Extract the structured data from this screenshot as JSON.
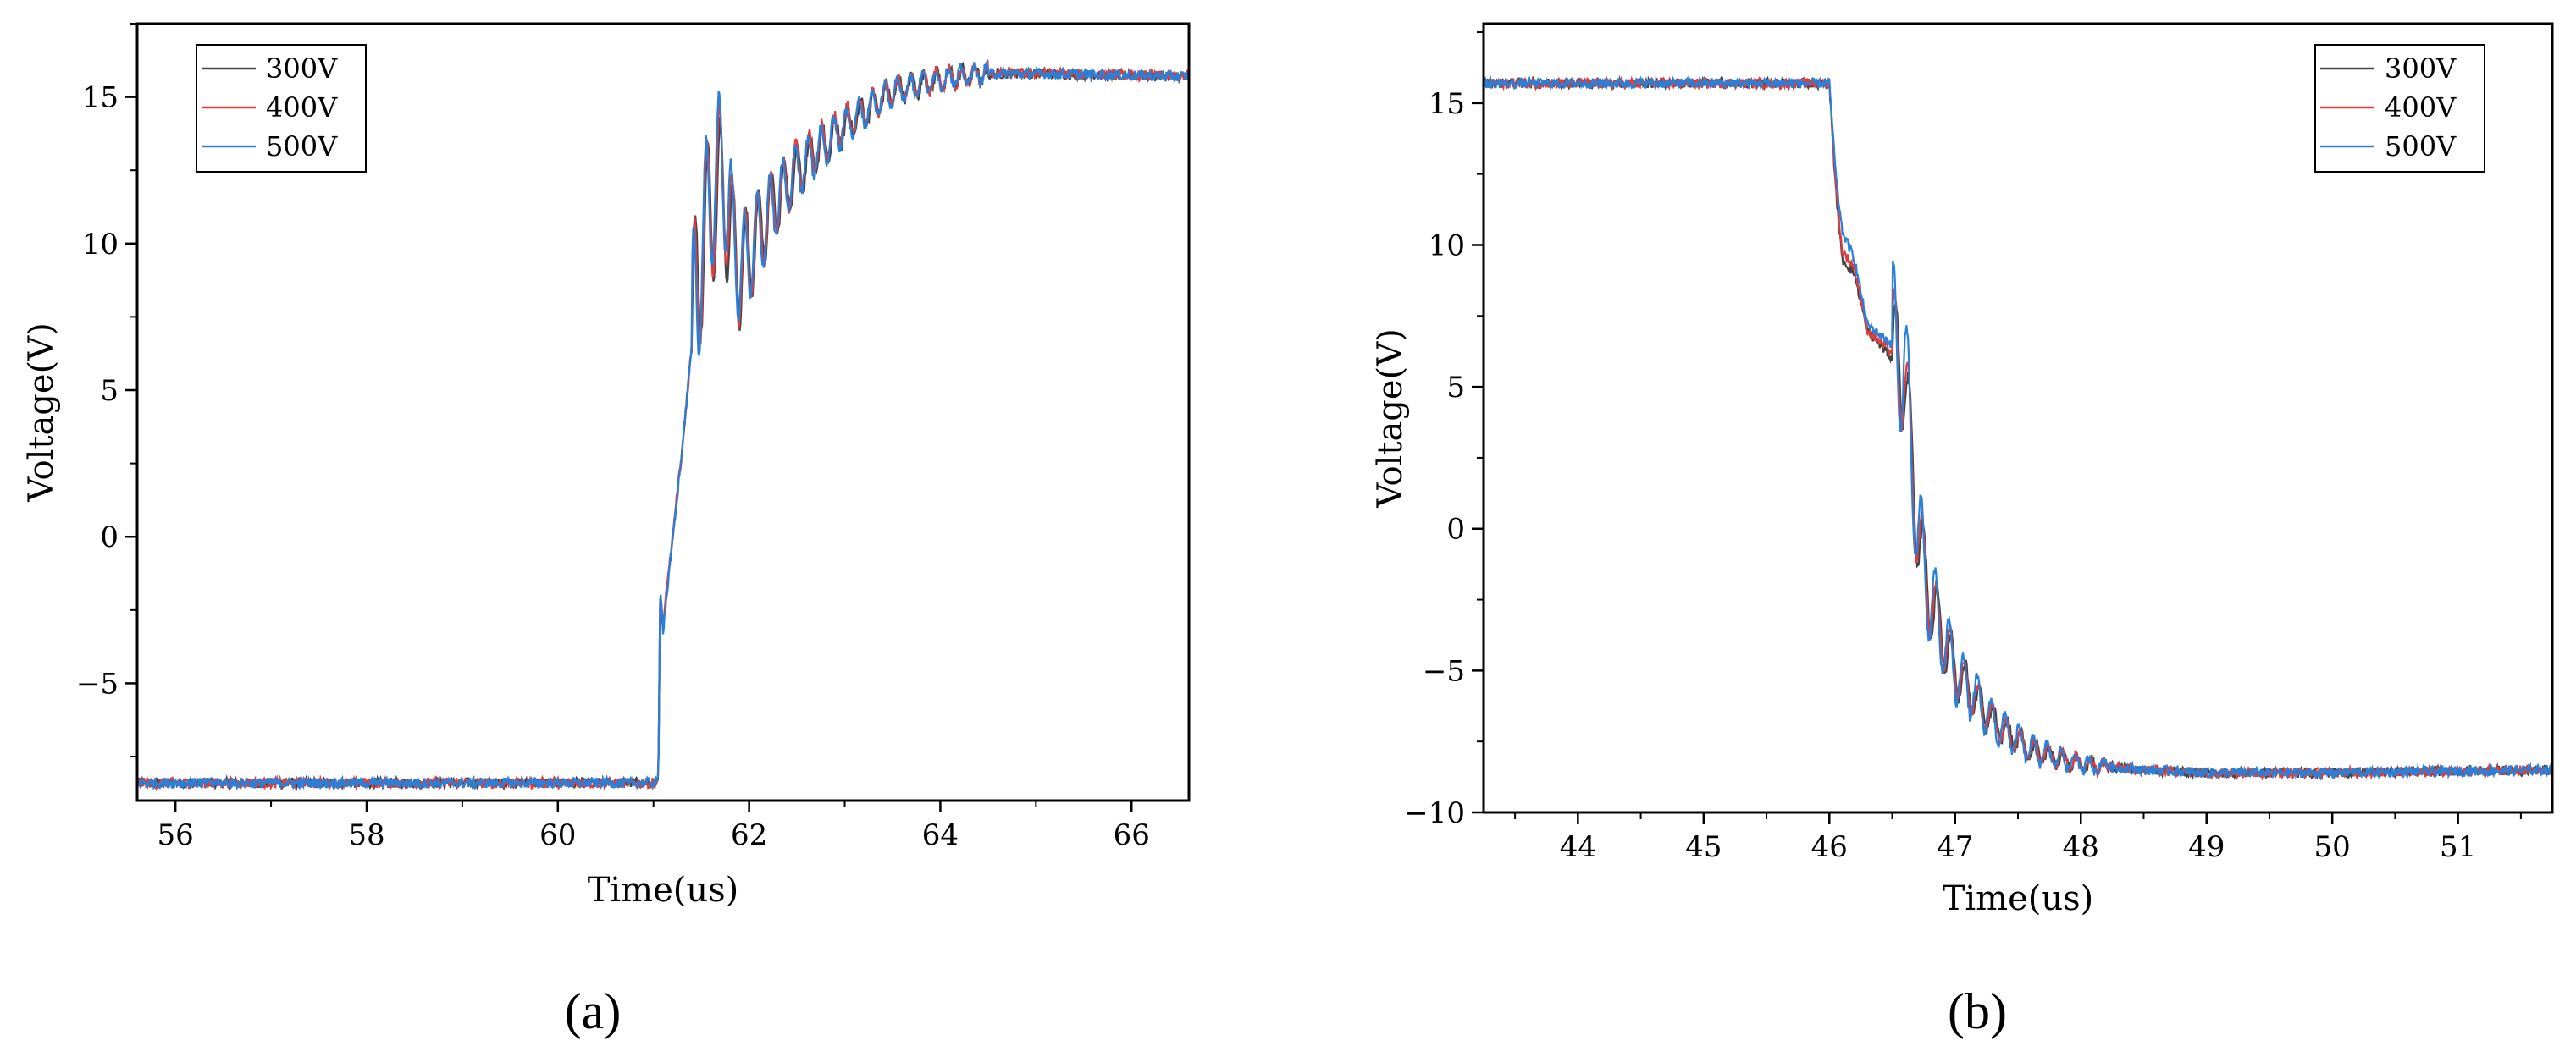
{
  "chart_data": [
    {
      "type": "line",
      "panel_label": "(a)",
      "xlabel": "Time(us)",
      "ylabel": "Voltage(V)",
      "xlim": [
        55.6,
        66.6
      ],
      "ylim": [
        -9.0,
        17.5
      ],
      "xticks": [
        56,
        58,
        60,
        62,
        64,
        66
      ],
      "yticks": [
        -5,
        0,
        5,
        10,
        15
      ],
      "legend_position": "top-left",
      "grid": false,
      "series": [
        {
          "name": "300V",
          "color": "#444444",
          "x": [
            55.6,
            61.05,
            61.07,
            61.1,
            61.3,
            61.5,
            61.7,
            61.9,
            62.2,
            62.5,
            63.0,
            63.5,
            64.0,
            64.5,
            65.0,
            66.6
          ],
          "y": [
            -8.4,
            -8.4,
            -2.0,
            -3.0,
            3.0,
            10.0,
            12.0,
            9.0,
            11.0,
            12.5,
            14.0,
            15.2,
            15.6,
            15.8,
            15.8,
            15.7
          ]
        },
        {
          "name": "400V",
          "color": "#e03c3c",
          "x": [
            55.6,
            61.05,
            61.07,
            61.1,
            61.3,
            61.5,
            61.7,
            61.9,
            62.2,
            62.5,
            63.0,
            63.5,
            64.0,
            64.5,
            65.0,
            66.6
          ],
          "y": [
            -8.4,
            -8.4,
            -1.8,
            -3.0,
            3.0,
            10.0,
            12.5,
            9.0,
            11.0,
            12.6,
            14.1,
            15.2,
            15.6,
            15.8,
            15.8,
            15.7
          ]
        },
        {
          "name": "500V",
          "color": "#2a7fd8",
          "x": [
            55.6,
            61.05,
            61.07,
            61.1,
            61.3,
            61.5,
            61.7,
            61.9,
            62.2,
            62.5,
            63.0,
            63.5,
            64.0,
            64.5,
            65.0,
            66.6
          ],
          "y": [
            -8.4,
            -8.4,
            -1.5,
            -3.2,
            3.0,
            10.0,
            13.0,
            9.0,
            11.0,
            12.5,
            14.0,
            15.2,
            15.6,
            15.8,
            15.8,
            15.7
          ]
        }
      ]
    },
    {
      "type": "line",
      "panel_label": "(b)",
      "xlabel": "Time(us)",
      "ylabel": "Voltage(V)",
      "xlim": [
        43.25,
        51.75
      ],
      "ylim": [
        -10.0,
        17.8
      ],
      "xticks": [
        44,
        45,
        46,
        47,
        48,
        49,
        50,
        51
      ],
      "yticks": [
        -10,
        -5,
        0,
        5,
        10,
        15
      ],
      "legend_position": "top-right",
      "grid": false,
      "series": [
        {
          "name": "300V",
          "color": "#444444",
          "x": [
            43.25,
            46.0,
            46.05,
            46.1,
            46.2,
            46.3,
            46.5,
            46.6,
            46.7,
            46.8,
            47.0,
            47.3,
            47.6,
            48.0,
            48.5,
            49.0,
            50.0,
            51.75
          ],
          "y": [
            15.7,
            15.7,
            12.0,
            9.5,
            9.0,
            7.0,
            6.0,
            5.5,
            0.0,
            -2.5,
            -5.0,
            -6.8,
            -7.8,
            -8.3,
            -8.5,
            -8.6,
            -8.6,
            -8.5
          ]
        },
        {
          "name": "400V",
          "color": "#e03c3c",
          "x": [
            43.25,
            46.0,
            46.05,
            46.1,
            46.2,
            46.3,
            46.5,
            46.6,
            46.7,
            46.8,
            47.0,
            47.3,
            47.6,
            48.0,
            48.5,
            49.0,
            50.0,
            51.75
          ],
          "y": [
            15.7,
            15.7,
            12.2,
            9.8,
            9.2,
            7.0,
            6.2,
            5.3,
            0.0,
            -2.5,
            -5.0,
            -6.8,
            -7.8,
            -8.3,
            -8.5,
            -8.6,
            -8.6,
            -8.5
          ]
        },
        {
          "name": "500V",
          "color": "#2a7fd8",
          "x": [
            43.25,
            46.0,
            46.05,
            46.1,
            46.2,
            46.3,
            46.5,
            46.6,
            46.7,
            46.8,
            47.0,
            47.3,
            47.6,
            48.0,
            48.5,
            49.0,
            50.0,
            51.75
          ],
          "y": [
            15.7,
            15.7,
            12.5,
            10.5,
            9.5,
            7.2,
            6.5,
            5.8,
            0.0,
            -2.5,
            -5.0,
            -6.8,
            -7.8,
            -8.3,
            -8.5,
            -8.6,
            -8.6,
            -8.5
          ]
        }
      ]
    }
  ]
}
